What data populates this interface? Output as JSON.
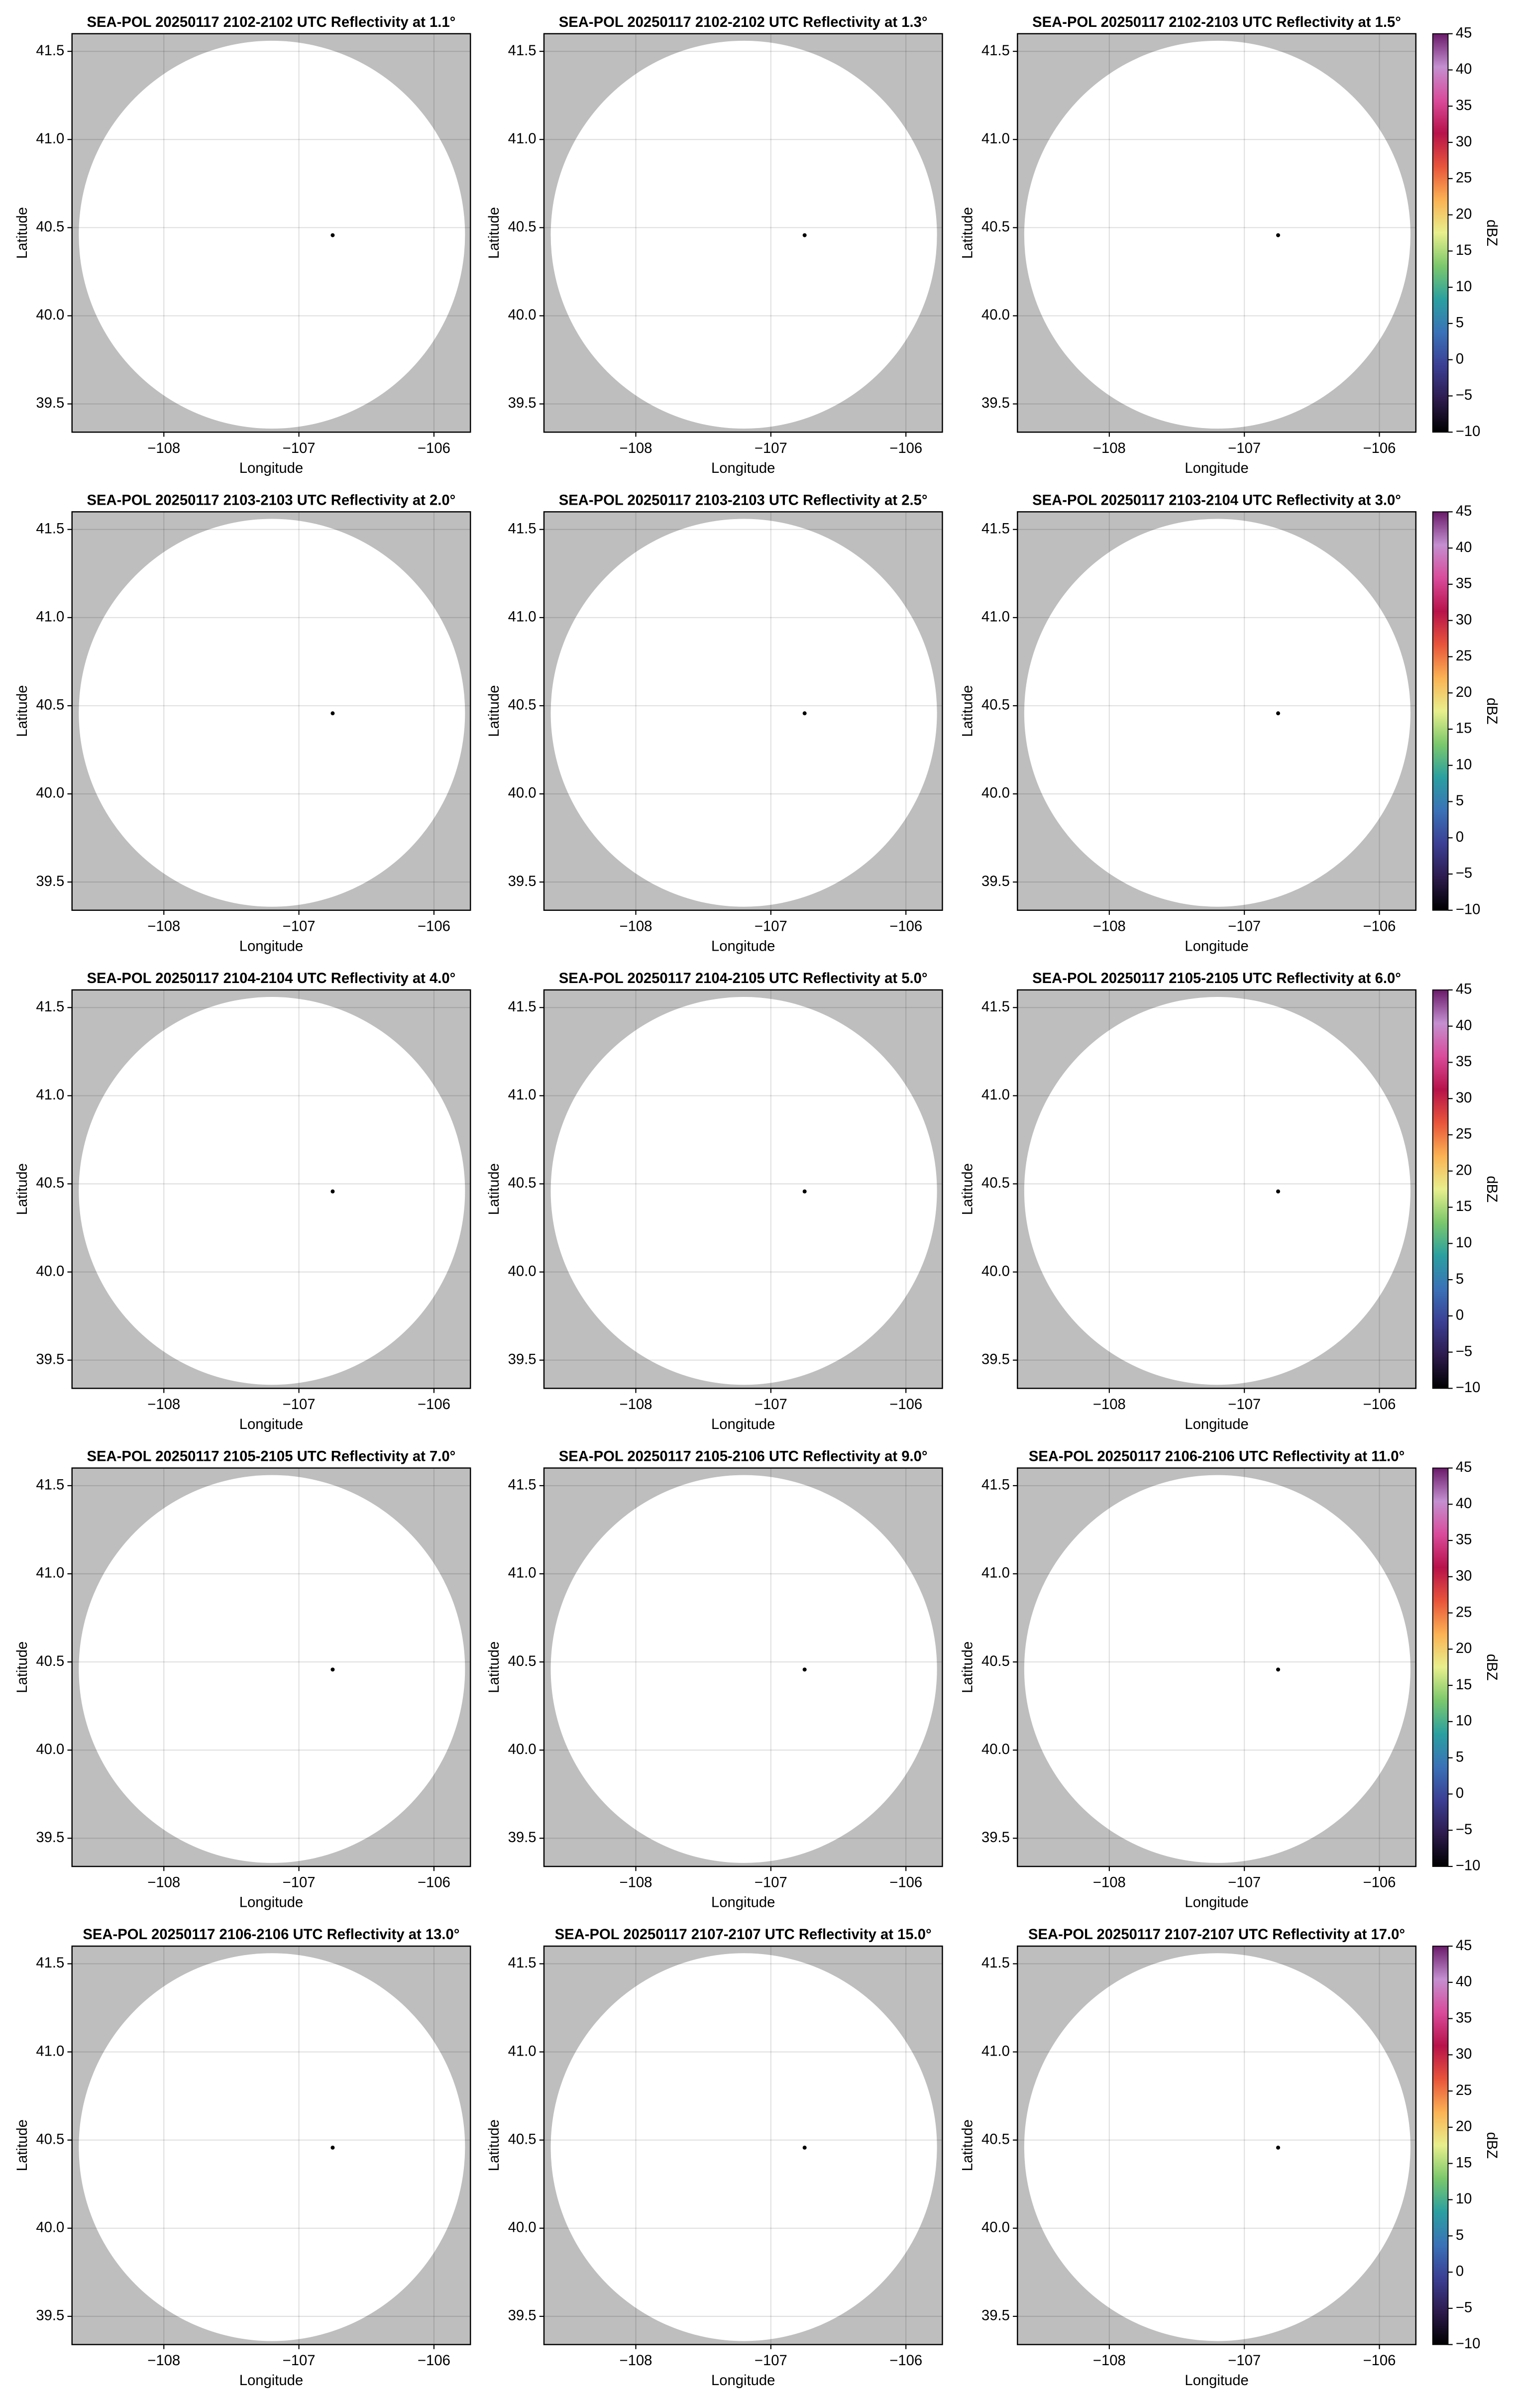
{
  "chart_data": [
    {
      "type": "ppi",
      "title": "SEA-POL 20250117 2102-2102 UTC Reflectivity at 1.1°",
      "x_label": "Longitude",
      "y_label": "Latitude",
      "xlim": [
        -108.68,
        -105.73
      ],
      "ylim": [
        39.34,
        41.6
      ],
      "xticks": [
        {
          "value": -108,
          "label": "−108"
        },
        {
          "value": -107,
          "label": "−107"
        },
        {
          "value": -106,
          "label": "−106"
        }
      ],
      "yticks": [
        39.5,
        {
          "value": 40,
          "label": "40.0"
        },
        40.5,
        {
          "value": 41,
          "label": "41.0"
        },
        41.5
      ],
      "grid": true,
      "background_color": "#bebebe",
      "coverage": {
        "x": -107.2,
        "y": 40.46,
        "rx": 1.43,
        "ry": 1.1,
        "color": "#ffffff"
      },
      "radar": {
        "x": -106.75,
        "y": 40.457,
        "color": "#000000"
      }
    },
    {
      "type": "ppi",
      "title": "SEA-POL 20250117 2102-2102 UTC Reflectivity at 1.3°",
      "x_label": "Longitude",
      "y_label": "Latitude",
      "xlim": [
        -108.68,
        -105.73
      ],
      "ylim": [
        39.34,
        41.6
      ],
      "xticks": [
        {
          "value": -108,
          "label": "−108"
        },
        {
          "value": -107,
          "label": "−107"
        },
        {
          "value": -106,
          "label": "−106"
        }
      ],
      "yticks": [
        39.5,
        {
          "value": 40,
          "label": "40.0"
        },
        40.5,
        {
          "value": 41,
          "label": "41.0"
        },
        41.5
      ],
      "grid": true,
      "background_color": "#bebebe",
      "coverage": {
        "x": -107.2,
        "y": 40.46,
        "rx": 1.43,
        "ry": 1.1,
        "color": "#ffffff"
      },
      "radar": {
        "x": -106.75,
        "y": 40.457,
        "color": "#000000"
      }
    },
    {
      "type": "ppi",
      "title": "SEA-POL 20250117 2102-2103 UTC Reflectivity at 1.5°",
      "x_label": "Longitude",
      "y_label": "Latitude",
      "xlim": [
        -108.68,
        -105.73
      ],
      "ylim": [
        39.34,
        41.6
      ],
      "xticks": [
        {
          "value": -108,
          "label": "−108"
        },
        {
          "value": -107,
          "label": "−107"
        },
        {
          "value": -106,
          "label": "−106"
        }
      ],
      "yticks": [
        39.5,
        {
          "value": 40,
          "label": "40.0"
        },
        40.5,
        {
          "value": 41,
          "label": "41.0"
        },
        41.5
      ],
      "grid": true,
      "background_color": "#bebebe",
      "coverage": {
        "x": -107.2,
        "y": 40.46,
        "rx": 1.43,
        "ry": 1.1,
        "color": "#ffffff"
      },
      "radar": {
        "x": -106.75,
        "y": 40.457,
        "color": "#000000"
      },
      "colorbar": {
        "label": "dBZ",
        "lim": [
          -10,
          45
        ],
        "ticks": [
          {
            "value": -10,
            "label": "−10"
          },
          {
            "value": -5,
            "label": "−5"
          },
          0,
          5,
          10,
          15,
          20,
          25,
          30,
          35,
          40,
          45
        ],
        "colors": [
          "#000000",
          "#2d1b4e",
          "#3b3f94",
          "#3a72b8",
          "#2aa0a0",
          "#7bc86c",
          "#e8ef8c",
          "#fbb253",
          "#e8543a",
          "#b8124a",
          "#d94b9b",
          "#c48fd0",
          "#6a1a6a"
        ]
      }
    },
    {
      "type": "ppi",
      "title": "SEA-POL 20250117 2103-2103 UTC Reflectivity at 2.0°",
      "x_label": "Longitude",
      "y_label": "Latitude",
      "xlim": [
        -108.68,
        -105.73
      ],
      "ylim": [
        39.34,
        41.6
      ],
      "xticks": [
        {
          "value": -108,
          "label": "−108"
        },
        {
          "value": -107,
          "label": "−107"
        },
        {
          "value": -106,
          "label": "−106"
        }
      ],
      "yticks": [
        39.5,
        {
          "value": 40,
          "label": "40.0"
        },
        40.5,
        {
          "value": 41,
          "label": "41.0"
        },
        41.5
      ],
      "grid": true,
      "background_color": "#bebebe",
      "coverage": {
        "x": -107.2,
        "y": 40.46,
        "rx": 1.43,
        "ry": 1.1,
        "color": "#ffffff"
      },
      "radar": {
        "x": -106.75,
        "y": 40.457,
        "color": "#000000"
      }
    },
    {
      "type": "ppi",
      "title": "SEA-POL 20250117 2103-2103 UTC Reflectivity at 2.5°",
      "x_label": "Longitude",
      "y_label": "Latitude",
      "xlim": [
        -108.68,
        -105.73
      ],
      "ylim": [
        39.34,
        41.6
      ],
      "xticks": [
        {
          "value": -108,
          "label": "−108"
        },
        {
          "value": -107,
          "label": "−107"
        },
        {
          "value": -106,
          "label": "−106"
        }
      ],
      "yticks": [
        39.5,
        {
          "value": 40,
          "label": "40.0"
        },
        40.5,
        {
          "value": 41,
          "label": "41.0"
        },
        41.5
      ],
      "grid": true,
      "background_color": "#bebebe",
      "coverage": {
        "x": -107.2,
        "y": 40.46,
        "rx": 1.43,
        "ry": 1.1,
        "color": "#ffffff"
      },
      "radar": {
        "x": -106.75,
        "y": 40.457,
        "color": "#000000"
      }
    },
    {
      "type": "ppi",
      "title": "SEA-POL 20250117 2103-2104 UTC Reflectivity at 3.0°",
      "x_label": "Longitude",
      "y_label": "Latitude",
      "xlim": [
        -108.68,
        -105.73
      ],
      "ylim": [
        39.34,
        41.6
      ],
      "xticks": [
        {
          "value": -108,
          "label": "−108"
        },
        {
          "value": -107,
          "label": "−107"
        },
        {
          "value": -106,
          "label": "−106"
        }
      ],
      "yticks": [
        39.5,
        {
          "value": 40,
          "label": "40.0"
        },
        40.5,
        {
          "value": 41,
          "label": "41.0"
        },
        41.5
      ],
      "grid": true,
      "background_color": "#bebebe",
      "coverage": {
        "x": -107.2,
        "y": 40.46,
        "rx": 1.43,
        "ry": 1.1,
        "color": "#ffffff"
      },
      "radar": {
        "x": -106.75,
        "y": 40.457,
        "color": "#000000"
      },
      "colorbar": {
        "label": "dBZ",
        "lim": [
          -10,
          45
        ],
        "ticks": [
          {
            "value": -10,
            "label": "−10"
          },
          {
            "value": -5,
            "label": "−5"
          },
          0,
          5,
          10,
          15,
          20,
          25,
          30,
          35,
          40,
          45
        ],
        "colors": [
          "#000000",
          "#2d1b4e",
          "#3b3f94",
          "#3a72b8",
          "#2aa0a0",
          "#7bc86c",
          "#e8ef8c",
          "#fbb253",
          "#e8543a",
          "#b8124a",
          "#d94b9b",
          "#c48fd0",
          "#6a1a6a"
        ]
      }
    },
    {
      "type": "ppi",
      "title": "SEA-POL 20250117 2104-2104 UTC Reflectivity at 4.0°",
      "x_label": "Longitude",
      "y_label": "Latitude",
      "xlim": [
        -108.68,
        -105.73
      ],
      "ylim": [
        39.34,
        41.6
      ],
      "xticks": [
        {
          "value": -108,
          "label": "−108"
        },
        {
          "value": -107,
          "label": "−107"
        },
        {
          "value": -106,
          "label": "−106"
        }
      ],
      "yticks": [
        39.5,
        {
          "value": 40,
          "label": "40.0"
        },
        40.5,
        {
          "value": 41,
          "label": "41.0"
        },
        41.5
      ],
      "grid": true,
      "background_color": "#bebebe",
      "coverage": {
        "x": -107.2,
        "y": 40.46,
        "rx": 1.43,
        "ry": 1.1,
        "color": "#ffffff"
      },
      "radar": {
        "x": -106.75,
        "y": 40.457,
        "color": "#000000"
      }
    },
    {
      "type": "ppi",
      "title": "SEA-POL 20250117 2104-2105 UTC Reflectivity at 5.0°",
      "x_label": "Longitude",
      "y_label": "Latitude",
      "xlim": [
        -108.68,
        -105.73
      ],
      "ylim": [
        39.34,
        41.6
      ],
      "xticks": [
        {
          "value": -108,
          "label": "−108"
        },
        {
          "value": -107,
          "label": "−107"
        },
        {
          "value": -106,
          "label": "−106"
        }
      ],
      "yticks": [
        39.5,
        {
          "value": 40,
          "label": "40.0"
        },
        40.5,
        {
          "value": 41,
          "label": "41.0"
        },
        41.5
      ],
      "grid": true,
      "background_color": "#bebebe",
      "coverage": {
        "x": -107.2,
        "y": 40.46,
        "rx": 1.43,
        "ry": 1.1,
        "color": "#ffffff"
      },
      "radar": {
        "x": -106.75,
        "y": 40.457,
        "color": "#000000"
      }
    },
    {
      "type": "ppi",
      "title": "SEA-POL 20250117 2105-2105 UTC Reflectivity at 6.0°",
      "x_label": "Longitude",
      "y_label": "Latitude",
      "xlim": [
        -108.68,
        -105.73
      ],
      "ylim": [
        39.34,
        41.6
      ],
      "xticks": [
        {
          "value": -108,
          "label": "−108"
        },
        {
          "value": -107,
          "label": "−107"
        },
        {
          "value": -106,
          "label": "−106"
        }
      ],
      "yticks": [
        39.5,
        {
          "value": 40,
          "label": "40.0"
        },
        40.5,
        {
          "value": 41,
          "label": "41.0"
        },
        41.5
      ],
      "grid": true,
      "background_color": "#bebebe",
      "coverage": {
        "x": -107.2,
        "y": 40.46,
        "rx": 1.43,
        "ry": 1.1,
        "color": "#ffffff"
      },
      "radar": {
        "x": -106.75,
        "y": 40.457,
        "color": "#000000"
      },
      "colorbar": {
        "label": "dBZ",
        "lim": [
          -10,
          45
        ],
        "ticks": [
          {
            "value": -10,
            "label": "−10"
          },
          {
            "value": -5,
            "label": "−5"
          },
          0,
          5,
          10,
          15,
          20,
          25,
          30,
          35,
          40,
          45
        ],
        "colors": [
          "#000000",
          "#2d1b4e",
          "#3b3f94",
          "#3a72b8",
          "#2aa0a0",
          "#7bc86c",
          "#e8ef8c",
          "#fbb253",
          "#e8543a",
          "#b8124a",
          "#d94b9b",
          "#c48fd0",
          "#6a1a6a"
        ]
      }
    },
    {
      "type": "ppi",
      "title": "SEA-POL 20250117 2105-2105 UTC Reflectivity at 7.0°",
      "x_label": "Longitude",
      "y_label": "Latitude",
      "xlim": [
        -108.68,
        -105.73
      ],
      "ylim": [
        39.34,
        41.6
      ],
      "xticks": [
        {
          "value": -108,
          "label": "−108"
        },
        {
          "value": -107,
          "label": "−107"
        },
        {
          "value": -106,
          "label": "−106"
        }
      ],
      "yticks": [
        39.5,
        {
          "value": 40,
          "label": "40.0"
        },
        40.5,
        {
          "value": 41,
          "label": "41.0"
        },
        41.5
      ],
      "grid": true,
      "background_color": "#bebebe",
      "coverage": {
        "x": -107.2,
        "y": 40.46,
        "rx": 1.43,
        "ry": 1.1,
        "color": "#ffffff"
      },
      "radar": {
        "x": -106.75,
        "y": 40.457,
        "color": "#000000"
      }
    },
    {
      "type": "ppi",
      "title": "SEA-POL 20250117 2105-2106 UTC Reflectivity at 9.0°",
      "x_label": "Longitude",
      "y_label": "Latitude",
      "xlim": [
        -108.68,
        -105.73
      ],
      "ylim": [
        39.34,
        41.6
      ],
      "xticks": [
        {
          "value": -108,
          "label": "−108"
        },
        {
          "value": -107,
          "label": "−107"
        },
        {
          "value": -106,
          "label": "−106"
        }
      ],
      "yticks": [
        39.5,
        {
          "value": 40,
          "label": "40.0"
        },
        40.5,
        {
          "value": 41,
          "label": "41.0"
        },
        41.5
      ],
      "grid": true,
      "background_color": "#bebebe",
      "coverage": {
        "x": -107.2,
        "y": 40.46,
        "rx": 1.43,
        "ry": 1.1,
        "color": "#ffffff"
      },
      "radar": {
        "x": -106.75,
        "y": 40.457,
        "color": "#000000"
      }
    },
    {
      "type": "ppi",
      "title": "SEA-POL 20250117 2106-2106 UTC Reflectivity at 11.0°",
      "x_label": "Longitude",
      "y_label": "Latitude",
      "xlim": [
        -108.68,
        -105.73
      ],
      "ylim": [
        39.34,
        41.6
      ],
      "xticks": [
        {
          "value": -108,
          "label": "−108"
        },
        {
          "value": -107,
          "label": "−107"
        },
        {
          "value": -106,
          "label": "−106"
        }
      ],
      "yticks": [
        39.5,
        {
          "value": 40,
          "label": "40.0"
        },
        40.5,
        {
          "value": 41,
          "label": "41.0"
        },
        41.5
      ],
      "grid": true,
      "background_color": "#bebebe",
      "coverage": {
        "x": -107.2,
        "y": 40.46,
        "rx": 1.43,
        "ry": 1.1,
        "color": "#ffffff"
      },
      "radar": {
        "x": -106.75,
        "y": 40.457,
        "color": "#000000"
      },
      "colorbar": {
        "label": "dBZ",
        "lim": [
          -10,
          45
        ],
        "ticks": [
          {
            "value": -10,
            "label": "−10"
          },
          {
            "value": -5,
            "label": "−5"
          },
          0,
          5,
          10,
          15,
          20,
          25,
          30,
          35,
          40,
          45
        ],
        "colors": [
          "#000000",
          "#2d1b4e",
          "#3b3f94",
          "#3a72b8",
          "#2aa0a0",
          "#7bc86c",
          "#e8ef8c",
          "#fbb253",
          "#e8543a",
          "#b8124a",
          "#d94b9b",
          "#c48fd0",
          "#6a1a6a"
        ]
      }
    },
    {
      "type": "ppi",
      "title": "SEA-POL 20250117 2106-2106 UTC Reflectivity at 13.0°",
      "x_label": "Longitude",
      "y_label": "Latitude",
      "xlim": [
        -108.68,
        -105.73
      ],
      "ylim": [
        39.34,
        41.6
      ],
      "xticks": [
        {
          "value": -108,
          "label": "−108"
        },
        {
          "value": -107,
          "label": "−107"
        },
        {
          "value": -106,
          "label": "−106"
        }
      ],
      "yticks": [
        39.5,
        {
          "value": 40,
          "label": "40.0"
        },
        40.5,
        {
          "value": 41,
          "label": "41.0"
        },
        41.5
      ],
      "grid": true,
      "background_color": "#bebebe",
      "coverage": {
        "x": -107.2,
        "y": 40.46,
        "rx": 1.43,
        "ry": 1.1,
        "color": "#ffffff"
      },
      "radar": {
        "x": -106.75,
        "y": 40.457,
        "color": "#000000"
      }
    },
    {
      "type": "ppi",
      "title": "SEA-POL 20250117 2107-2107 UTC Reflectivity at 15.0°",
      "x_label": "Longitude",
      "y_label": "Latitude",
      "xlim": [
        -108.68,
        -105.73
      ],
      "ylim": [
        39.34,
        41.6
      ],
      "xticks": [
        {
          "value": -108,
          "label": "−108"
        },
        {
          "value": -107,
          "label": "−107"
        },
        {
          "value": -106,
          "label": "−106"
        }
      ],
      "yticks": [
        39.5,
        {
          "value": 40,
          "label": "40.0"
        },
        40.5,
        {
          "value": 41,
          "label": "41.0"
        },
        41.5
      ],
      "grid": true,
      "background_color": "#bebebe",
      "coverage": {
        "x": -107.2,
        "y": 40.46,
        "rx": 1.43,
        "ry": 1.1,
        "color": "#ffffff"
      },
      "radar": {
        "x": -106.75,
        "y": 40.457,
        "color": "#000000"
      }
    },
    {
      "type": "ppi",
      "title": "SEA-POL 20250117 2107-2107 UTC Reflectivity at 17.0°",
      "x_label": "Longitude",
      "y_label": "Latitude",
      "xlim": [
        -108.68,
        -105.73
      ],
      "ylim": [
        39.34,
        41.6
      ],
      "xticks": [
        {
          "value": -108,
          "label": "−108"
        },
        {
          "value": -107,
          "label": "−107"
        },
        {
          "value": -106,
          "label": "−106"
        }
      ],
      "yticks": [
        39.5,
        {
          "value": 40,
          "label": "40.0"
        },
        40.5,
        {
          "value": 41,
          "label": "41.0"
        },
        41.5
      ],
      "grid": true,
      "background_color": "#bebebe",
      "coverage": {
        "x": -107.2,
        "y": 40.46,
        "rx": 1.43,
        "ry": 1.1,
        "color": "#ffffff"
      },
      "radar": {
        "x": -106.75,
        "y": 40.457,
        "color": "#000000"
      },
      "colorbar": {
        "label": "dBZ",
        "lim": [
          -10,
          45
        ],
        "ticks": [
          {
            "value": -10,
            "label": "−10"
          },
          {
            "value": -5,
            "label": "−5"
          },
          0,
          5,
          10,
          15,
          20,
          25,
          30,
          35,
          40,
          45
        ],
        "colors": [
          "#000000",
          "#2d1b4e",
          "#3b3f94",
          "#3a72b8",
          "#2aa0a0",
          "#7bc86c",
          "#e8ef8c",
          "#fbb253",
          "#e8543a",
          "#b8124a",
          "#d94b9b",
          "#c48fd0",
          "#6a1a6a"
        ]
      }
    }
  ]
}
